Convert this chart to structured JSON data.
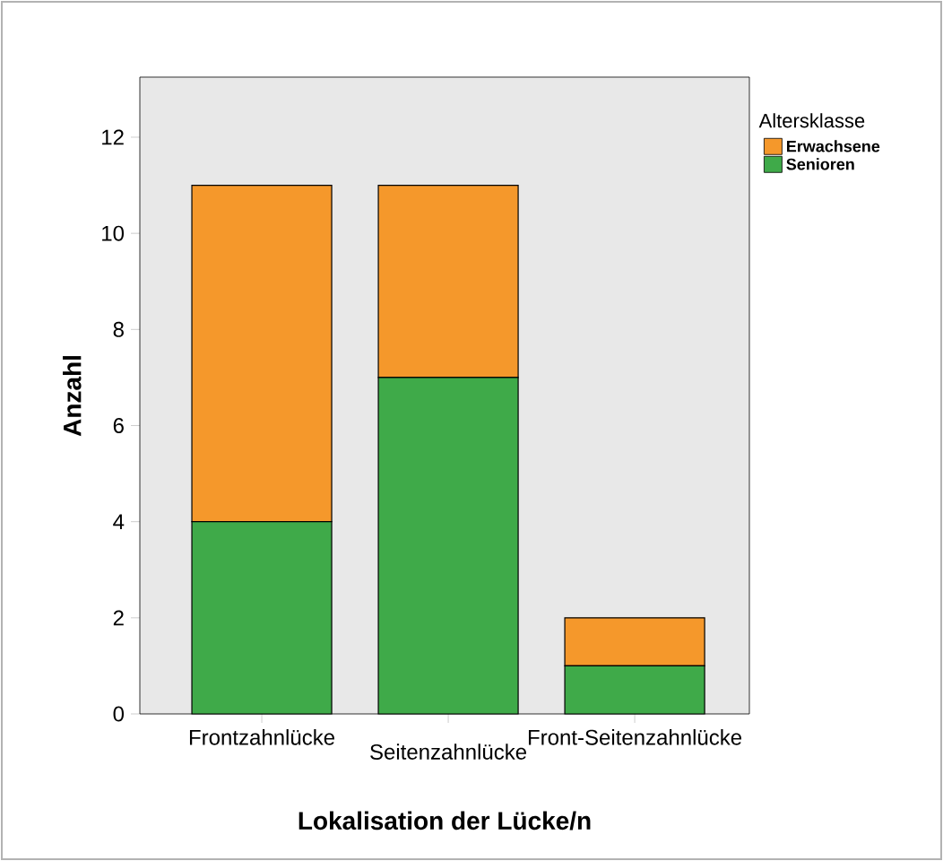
{
  "chart_data": {
    "type": "bar",
    "stacked": true,
    "xlabel": "Lokalisation der Lücke/n",
    "ylabel": "Anzahl",
    "legend_title": "Altersklasse",
    "categories": [
      "Frontzahnlücke",
      "Seitenzahnlücke",
      "Front-Seitenzahnlücke"
    ],
    "series": [
      {
        "name": "Senioren",
        "color": "#3faa49",
        "values": [
          4,
          7,
          1
        ]
      },
      {
        "name": "Erwachsene",
        "color": "#f5982b",
        "values": [
          7,
          4,
          1
        ]
      }
    ],
    "ylim": [
      0,
      13.25
    ],
    "yticks": [
      0,
      2,
      4,
      6,
      8,
      10,
      12
    ],
    "legend": "top right",
    "grid": false
  }
}
